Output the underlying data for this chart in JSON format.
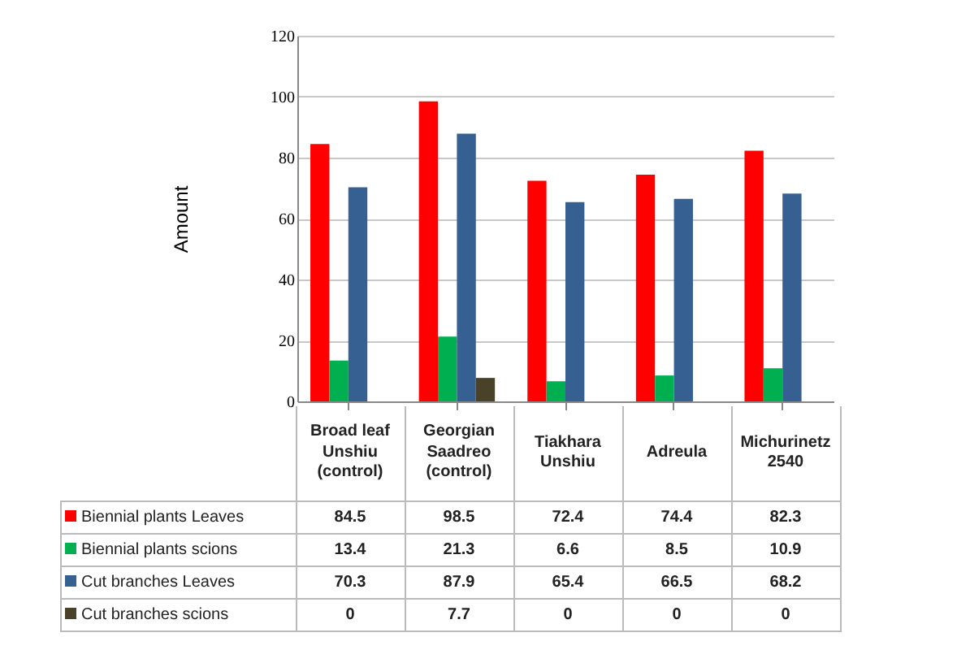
{
  "chart_data": {
    "type": "bar",
    "ylabel": "Amount",
    "categories": [
      "Broad leaf Unshiu (control)",
      "Georgian Saadreo (control)",
      "Tiakhara Unshiu",
      "Adreula",
      "Michurinetz 2540"
    ],
    "series": [
      {
        "name": "Biennial plants Leaves",
        "color": "#ff0000",
        "values": [
          84.5,
          98.5,
          72.4,
          74.4,
          82.3
        ]
      },
      {
        "name": "Biennial plants scions",
        "color": "#00b050",
        "values": [
          13.4,
          21.3,
          6.6,
          8.5,
          10.9
        ]
      },
      {
        "name": "Cut branches Leaves",
        "color": "#376092",
        "values": [
          70.3,
          87.9,
          65.4,
          66.5,
          68.2
        ]
      },
      {
        "name": "Cut branches scions",
        "color": "#4a4228",
        "values": [
          0,
          7.7,
          0,
          0,
          0
        ]
      }
    ],
    "ylim": [
      0,
      120
    ],
    "yticks": [
      0,
      20,
      40,
      60,
      80,
      100,
      120
    ],
    "grid": "y",
    "data_labels": true,
    "legend": "bottom left"
  }
}
